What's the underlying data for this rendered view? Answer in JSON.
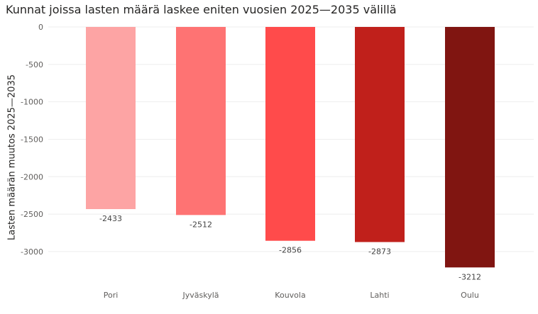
{
  "chart_data": {
    "type": "bar",
    "title": "Kunnat joissa lasten määrä laskee eniten vuosien 2025—2035 välillä",
    "xlabel": "",
    "ylabel": "Lasten määrän muutos 2025—2035",
    "categories": [
      "Pori",
      "Jyväskylä",
      "Kouvola",
      "Lahti",
      "Oulu"
    ],
    "values": [
      -2433,
      -2512,
      -2856,
      -2873,
      -3212
    ],
    "colors": [
      "#fda4a4",
      "#fe7373",
      "#ff4b4b",
      "#c0201b",
      "#801511"
    ],
    "ylim": [
      -3212,
      0
    ],
    "yticks": [
      0,
      -500,
      -1000,
      -1500,
      -2000,
      -2500,
      -3000
    ],
    "grid": true,
    "data_labels": true
  }
}
